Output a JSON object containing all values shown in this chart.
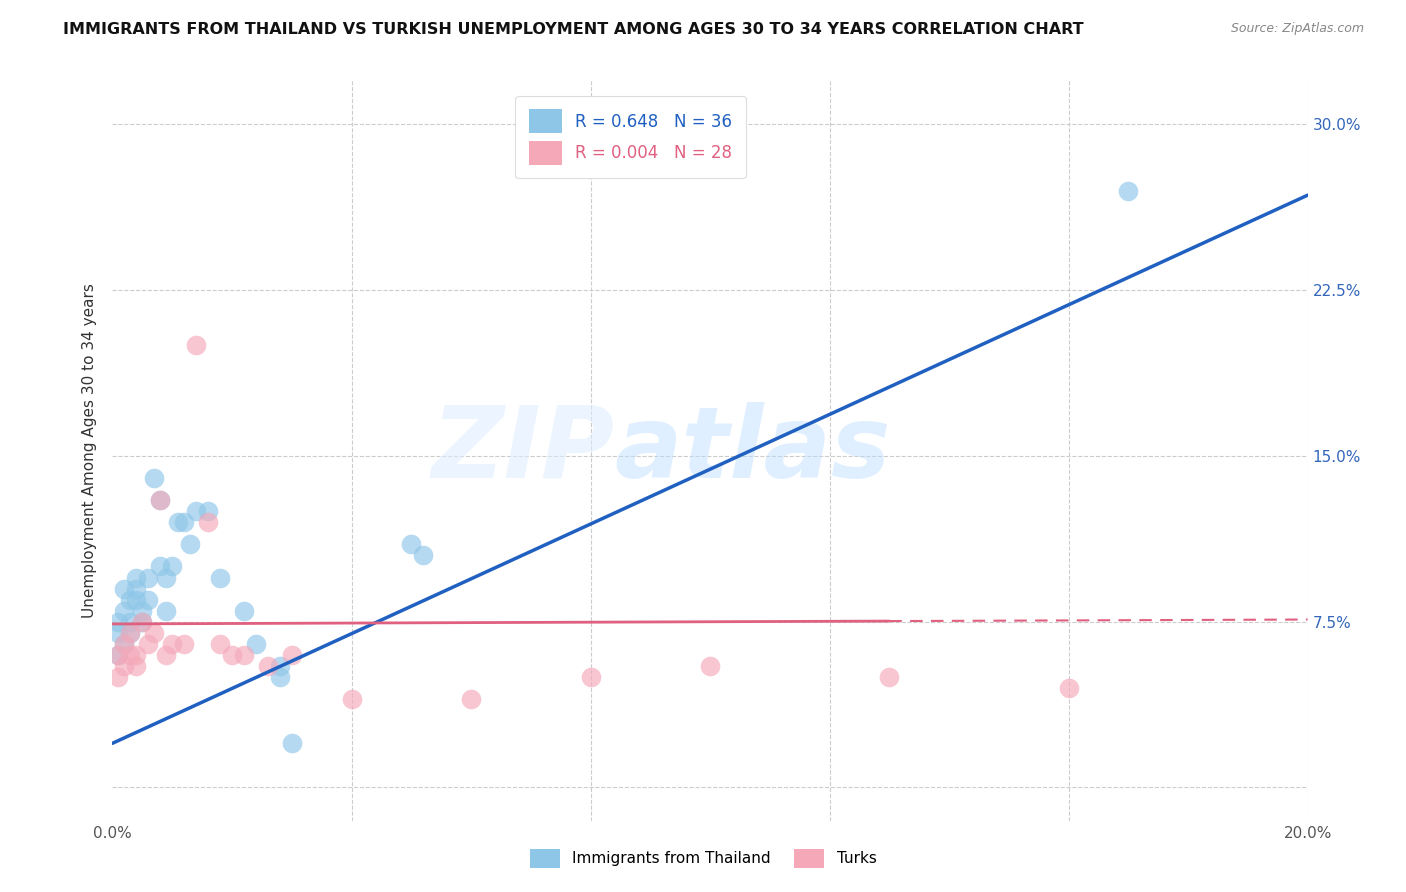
{
  "title": "IMMIGRANTS FROM THAILAND VS TURKISH UNEMPLOYMENT AMONG AGES 30 TO 34 YEARS CORRELATION CHART",
  "source": "Source: ZipAtlas.com",
  "ylabel": "Unemployment Among Ages 30 to 34 years",
  "xlim": [
    0.0,
    0.2
  ],
  "ylim": [
    -0.015,
    0.32
  ],
  "xticks": [
    0.0,
    0.04,
    0.08,
    0.12,
    0.16,
    0.2
  ],
  "yticks": [
    0.0,
    0.075,
    0.15,
    0.225,
    0.3
  ],
  "blue_label": "Immigrants from Thailand",
  "pink_label": "Turks",
  "blue_R": "R = 0.648",
  "blue_N": "N = 36",
  "pink_R": "R = 0.004",
  "pink_N": "N = 28",
  "blue_color": "#8ec6e8",
  "pink_color": "#f4a8b8",
  "blue_line_color": "#2060c0",
  "pink_line_color": "#e06080",
  "watermark_zip": "ZIP",
  "watermark_atlas": "atlas",
  "blue_x": [
    0.001,
    0.001,
    0.001,
    0.002,
    0.002,
    0.002,
    0.003,
    0.003,
    0.003,
    0.004,
    0.004,
    0.004,
    0.005,
    0.005,
    0.006,
    0.006,
    0.007,
    0.008,
    0.008,
    0.009,
    0.009,
    0.01,
    0.011,
    0.012,
    0.013,
    0.014,
    0.016,
    0.018,
    0.022,
    0.024,
    0.028,
    0.05,
    0.052,
    0.03,
    0.17,
    0.028
  ],
  "blue_y": [
    0.06,
    0.07,
    0.075,
    0.065,
    0.08,
    0.09,
    0.075,
    0.085,
    0.07,
    0.085,
    0.09,
    0.095,
    0.075,
    0.08,
    0.085,
    0.095,
    0.14,
    0.13,
    0.1,
    0.095,
    0.08,
    0.1,
    0.12,
    0.12,
    0.11,
    0.125,
    0.125,
    0.095,
    0.08,
    0.065,
    0.05,
    0.11,
    0.105,
    0.02,
    0.27,
    0.055
  ],
  "pink_x": [
    0.001,
    0.001,
    0.002,
    0.002,
    0.003,
    0.003,
    0.004,
    0.004,
    0.005,
    0.006,
    0.007,
    0.008,
    0.009,
    0.01,
    0.012,
    0.014,
    0.016,
    0.018,
    0.02,
    0.022,
    0.026,
    0.03,
    0.04,
    0.06,
    0.08,
    0.1,
    0.13,
    0.16
  ],
  "pink_y": [
    0.06,
    0.05,
    0.055,
    0.065,
    0.06,
    0.07,
    0.055,
    0.06,
    0.075,
    0.065,
    0.07,
    0.13,
    0.06,
    0.065,
    0.065,
    0.2,
    0.12,
    0.065,
    0.06,
    0.06,
    0.055,
    0.06,
    0.04,
    0.04,
    0.05,
    0.055,
    0.05,
    0.045
  ],
  "blue_line_x0": 0.0,
  "blue_line_y0": 0.02,
  "blue_line_x1": 0.2,
  "blue_line_y1": 0.268,
  "pink_line_x0": 0.0,
  "pink_line_y0": 0.074,
  "pink_line_x1": 0.2,
  "pink_line_y1": 0.076
}
